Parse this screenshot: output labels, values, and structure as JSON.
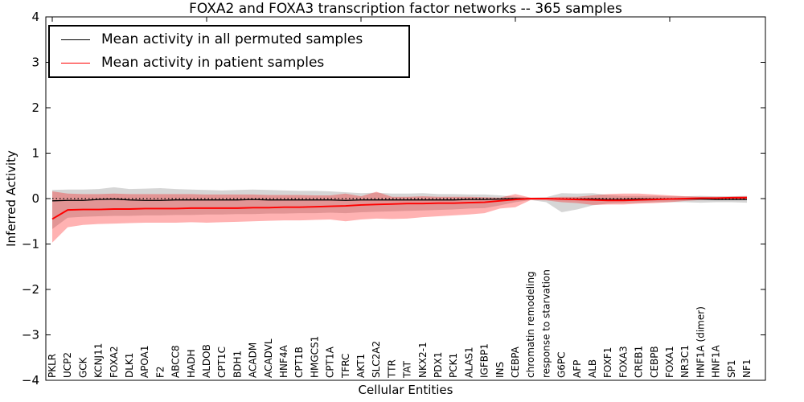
{
  "title": "FOXA2 and FOXA3 transcription factor networks -- 365 samples",
  "axes": {
    "xlabel": "Cellular Entities",
    "ylabel": "Inferred Activity",
    "yticks": [
      {
        "value": 4,
        "label": "4"
      },
      {
        "value": 3,
        "label": "3"
      },
      {
        "value": 2,
        "label": "2"
      },
      {
        "value": 1,
        "label": "1"
      },
      {
        "value": 0,
        "label": "0"
      },
      {
        "value": -1,
        "label": "−1"
      },
      {
        "value": -2,
        "label": "−2"
      },
      {
        "value": -3,
        "label": "−3"
      },
      {
        "value": -4,
        "label": "−4"
      }
    ]
  },
  "legend": {
    "items": [
      {
        "label": "Mean activity in all permuted samples",
        "color": "#000000"
      },
      {
        "label": "Mean activity in patient samples",
        "color": "#ff0000"
      }
    ]
  },
  "colors": {
    "permuted_line": "#000000",
    "patient_line": "#ff0000",
    "permuted_band": "#808080",
    "patient_band": "#ff0000",
    "axis": "#000000"
  },
  "chart_data": {
    "type": "line",
    "title": "FOXA2 and FOXA3 transcription factor networks -- 365 samples",
    "xlabel": "Cellular Entities",
    "ylabel": "Inferred Activity",
    "ylim": [
      -4,
      4
    ],
    "grid": false,
    "legend_position": "upper left",
    "x_major_tick_indices": [
      0,
      10,
      20,
      30,
      40
    ],
    "zero_line": {
      "style": "dotted",
      "y": 0
    },
    "categories": [
      "PKLR",
      "UCP2",
      "GCK",
      "KCNJ11",
      "FOXA2",
      "DLK1",
      "APOA1",
      "F2",
      "ABCC8",
      "HADH",
      "ALDOB",
      "CPT1C",
      "BDH1",
      "ACADM",
      "ACADVL",
      "HNF4A",
      "CPT1B",
      "HMGCS1",
      "CPT1A",
      "TFRC",
      "AKT1",
      "SLC2A2",
      "TTR",
      "TAT",
      "NKX2-1",
      "PDX1",
      "PCK1",
      "ALAS1",
      "IGFBP1",
      "INS",
      "CEBPA",
      "chromatin remodeling",
      "response to starvation",
      "G6PC",
      "AFP",
      "ALB",
      "FOXF1",
      "FOXA3",
      "CREB1",
      "CEBPB",
      "FOXA1",
      "NR3C1",
      "HNF1A (dimer)",
      "HNF1A",
      "SP1",
      "NF1"
    ],
    "series": [
      {
        "name": "Mean activity in all permuted samples",
        "color": "#000000",
        "values": [
          -0.05,
          -0.04,
          -0.04,
          -0.02,
          -0.01,
          -0.03,
          -0.04,
          -0.04,
          -0.03,
          -0.03,
          -0.03,
          -0.03,
          -0.03,
          -0.02,
          -0.03,
          -0.03,
          -0.03,
          -0.03,
          -0.03,
          -0.04,
          -0.03,
          -0.03,
          -0.03,
          -0.03,
          -0.03,
          -0.03,
          -0.03,
          -0.02,
          -0.02,
          -0.01,
          0.0,
          0.0,
          0.0,
          -0.01,
          -0.01,
          -0.01,
          -0.02,
          -0.02,
          -0.01,
          -0.01,
          -0.01,
          -0.01,
          -0.01,
          -0.02,
          -0.02,
          -0.02
        ]
      },
      {
        "name": "Mean activity in patient samples",
        "color": "#ff0000",
        "values": [
          -0.45,
          -0.25,
          -0.24,
          -0.24,
          -0.23,
          -0.23,
          -0.22,
          -0.22,
          -0.22,
          -0.21,
          -0.21,
          -0.21,
          -0.21,
          -0.2,
          -0.2,
          -0.19,
          -0.19,
          -0.18,
          -0.17,
          -0.16,
          -0.14,
          -0.13,
          -0.12,
          -0.11,
          -0.11,
          -0.1,
          -0.1,
          -0.09,
          -0.08,
          -0.05,
          -0.02,
          0.0,
          0.0,
          -0.01,
          -0.02,
          -0.03,
          -0.04,
          -0.04,
          -0.03,
          -0.02,
          -0.01,
          0.0,
          0.01,
          0.01,
          0.02,
          0.02
        ]
      }
    ],
    "bands": [
      {
        "name": "permuted samples range",
        "color": "#808080",
        "opacity": 0.32,
        "upper": [
          0.19,
          0.2,
          0.2,
          0.21,
          0.25,
          0.21,
          0.22,
          0.23,
          0.21,
          0.2,
          0.19,
          0.18,
          0.19,
          0.2,
          0.19,
          0.18,
          0.17,
          0.17,
          0.16,
          0.14,
          0.12,
          0.13,
          0.11,
          0.11,
          0.12,
          0.1,
          0.1,
          0.09,
          0.09,
          0.07,
          0.04,
          0.02,
          0.03,
          0.12,
          0.11,
          0.12,
          0.08,
          0.06,
          0.06,
          0.06,
          0.05,
          0.05,
          0.06,
          0.05,
          0.05,
          0.06
        ],
        "lower": [
          -0.67,
          -0.42,
          -0.4,
          -0.39,
          -0.38,
          -0.38,
          -0.37,
          -0.37,
          -0.36,
          -0.36,
          -0.35,
          -0.35,
          -0.34,
          -0.34,
          -0.33,
          -0.33,
          -0.32,
          -0.32,
          -0.31,
          -0.32,
          -0.3,
          -0.29,
          -0.28,
          -0.27,
          -0.26,
          -0.25,
          -0.24,
          -0.22,
          -0.21,
          -0.15,
          -0.08,
          -0.03,
          -0.08,
          -0.3,
          -0.24,
          -0.15,
          -0.11,
          -0.1,
          -0.09,
          -0.08,
          -0.08,
          -0.08,
          -0.09,
          -0.08,
          -0.08,
          -0.09
        ]
      },
      {
        "name": "patient samples range",
        "color": "#ff0000",
        "opacity": 0.3,
        "upper": [
          0.16,
          0.11,
          0.1,
          0.1,
          0.11,
          0.1,
          0.1,
          0.1,
          0.1,
          0.1,
          0.09,
          0.09,
          0.09,
          0.09,
          0.08,
          0.08,
          0.08,
          0.07,
          0.07,
          0.11,
          0.05,
          0.15,
          0.04,
          0.04,
          0.05,
          0.04,
          0.04,
          0.04,
          0.03,
          0.02,
          0.1,
          0.02,
          0.02,
          0.04,
          0.04,
          0.07,
          0.1,
          0.11,
          0.11,
          0.09,
          0.07,
          0.05,
          0.04,
          0.04,
          0.04,
          0.05
        ],
        "lower": [
          -0.97,
          -0.63,
          -0.58,
          -0.56,
          -0.55,
          -0.54,
          -0.53,
          -0.53,
          -0.53,
          -0.52,
          -0.53,
          -0.52,
          -0.51,
          -0.5,
          -0.49,
          -0.48,
          -0.48,
          -0.47,
          -0.46,
          -0.5,
          -0.46,
          -0.44,
          -0.45,
          -0.44,
          -0.41,
          -0.39,
          -0.37,
          -0.35,
          -0.32,
          -0.22,
          -0.19,
          -0.03,
          -0.04,
          -0.08,
          -0.1,
          -0.14,
          -0.13,
          -0.13,
          -0.11,
          -0.1,
          -0.08,
          -0.05,
          -0.03,
          -0.02,
          -0.02,
          -0.03
        ]
      }
    ]
  }
}
